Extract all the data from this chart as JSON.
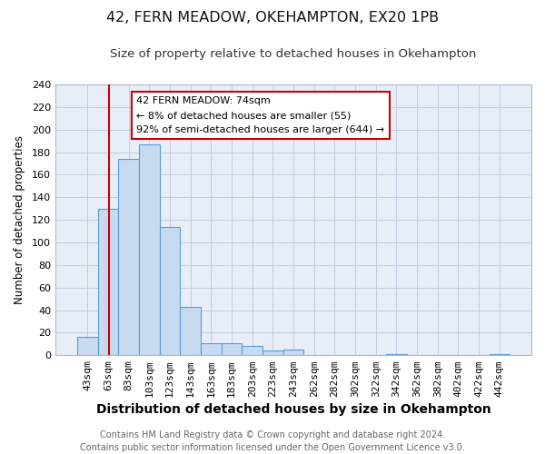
{
  "title": "42, FERN MEADOW, OKEHAMPTON, EX20 1PB",
  "subtitle": "Size of property relative to detached houses in Okehampton",
  "xlabel": "Distribution of detached houses by size in Okehampton",
  "ylabel": "Number of detached properties",
  "bar_labels": [
    "43sqm",
    "63sqm",
    "83sqm",
    "103sqm",
    "123sqm",
    "143sqm",
    "163sqm",
    "183sqm",
    "203sqm",
    "223sqm",
    "243sqm",
    "262sqm",
    "282sqm",
    "302sqm",
    "322sqm",
    "342sqm",
    "362sqm",
    "382sqm",
    "402sqm",
    "422sqm",
    "442sqm"
  ],
  "bar_values": [
    16,
    130,
    174,
    187,
    114,
    43,
    11,
    11,
    8,
    4,
    5,
    0,
    0,
    0,
    0,
    1,
    0,
    0,
    0,
    0,
    1
  ],
  "bar_color": "#c8daf0",
  "bar_edge_color": "#5b9bd5",
  "bg_color": "#e8eef8",
  "ylim": [
    0,
    240
  ],
  "yticks": [
    0,
    20,
    40,
    60,
    80,
    100,
    120,
    140,
    160,
    180,
    200,
    220,
    240
  ],
  "marker_color": "#cc0000",
  "annotation_title": "42 FERN MEADOW: 74sqm",
  "annotation_line1": "← 8% of detached houses are smaller (55)",
  "annotation_line2": "92% of semi-detached houses are larger (644) →",
  "annotation_box_edge_color": "#cc0000",
  "footer_line1": "Contains HM Land Registry data © Crown copyright and database right 2024.",
  "footer_line2": "Contains public sector information licensed under the Open Government Licence v3.0.",
  "title_fontsize": 11.5,
  "subtitle_fontsize": 9.5,
  "xlabel_fontsize": 10,
  "ylabel_fontsize": 8.5,
  "tick_fontsize": 8,
  "annotation_fontsize": 8,
  "footer_fontsize": 7
}
